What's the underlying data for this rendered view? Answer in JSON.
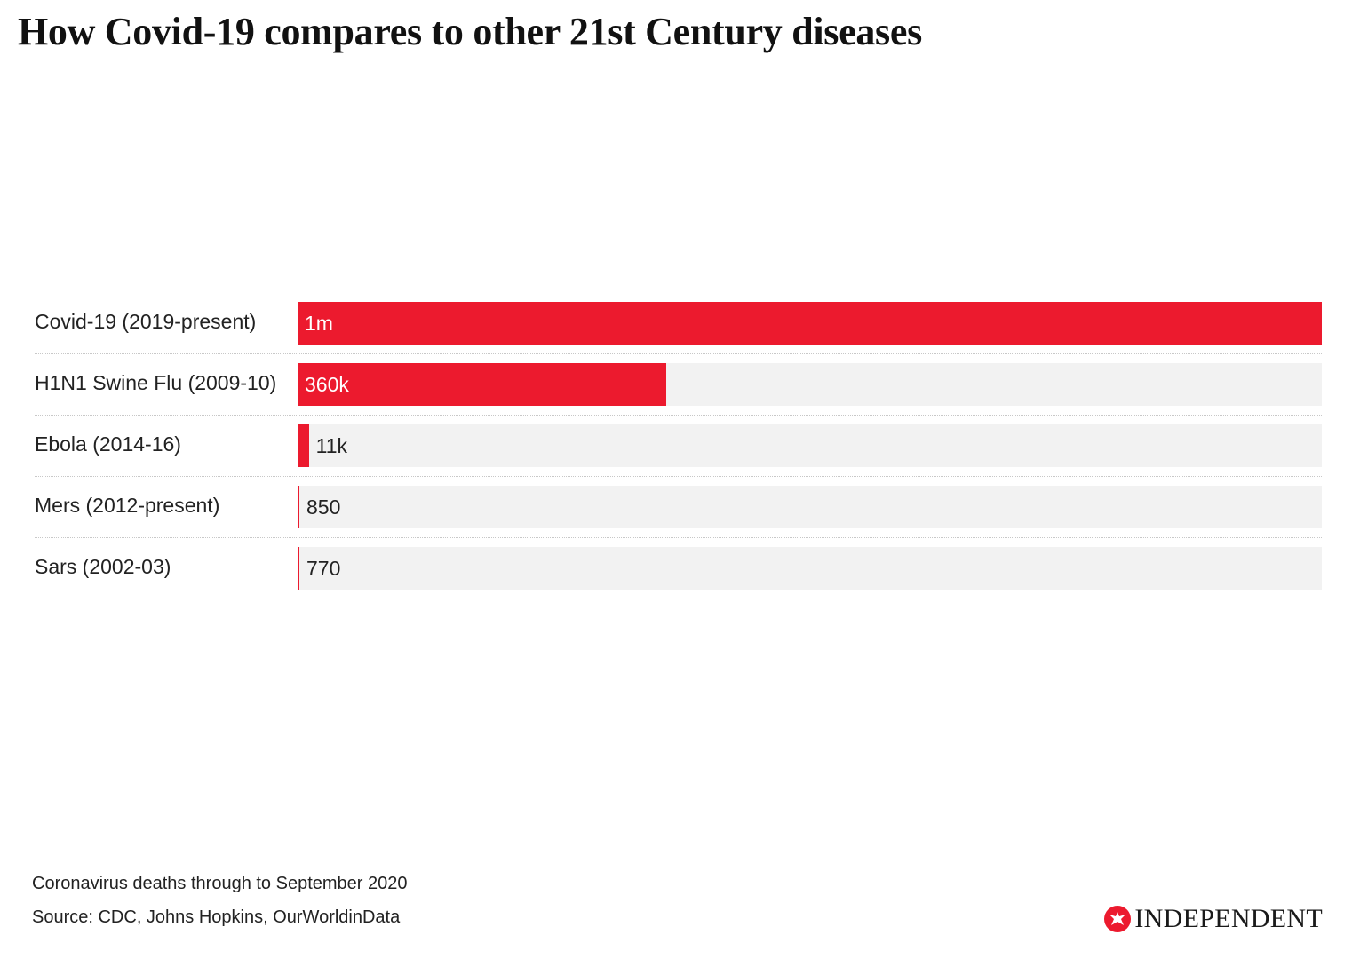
{
  "title": "How Covid-19 compares to other 21st Century diseases",
  "footnote": "Coronavirus deaths through to September 2020",
  "source": "Source: CDC, Johns Hopkins, OurWorldinData",
  "brand": "INDEPENDENT",
  "colors": {
    "bar": "#ec1a2e",
    "track": "#f2f2f2"
  },
  "chart_data": {
    "type": "bar",
    "orientation": "horizontal",
    "categories": [
      "Covid-19 (2019-present)",
      "H1N1 Swine Flu (2009-10)",
      "Ebola (2014-16)",
      "Mers (2012-present)",
      "Sars (2002-03)"
    ],
    "values": [
      1000000,
      360000,
      11000,
      850,
      770
    ],
    "value_labels": [
      "1m",
      "360k",
      "11k",
      "850",
      "770"
    ],
    "xlim": [
      0,
      1000000
    ],
    "grid": false,
    "legend": "none"
  }
}
